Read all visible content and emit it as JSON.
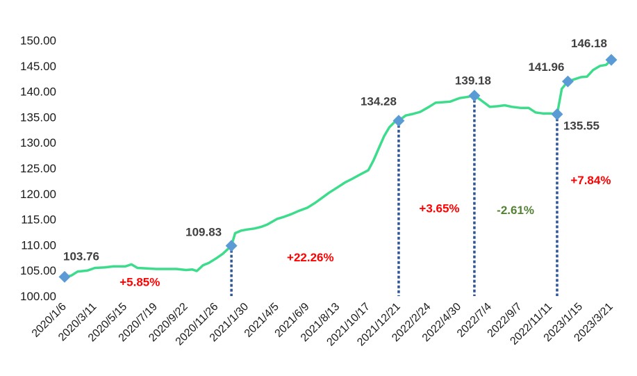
{
  "chart_data": {
    "type": "line",
    "ylim": [
      100,
      150
    ],
    "yticks": [
      "100.00",
      "105.00",
      "110.00",
      "115.00",
      "120.00",
      "125.00",
      "130.00",
      "135.00",
      "140.00",
      "145.00",
      "150.00"
    ],
    "x_tick_labels": [
      "2020/1/6",
      "2020/3/11",
      "2020/5/15",
      "2020/7/19",
      "2020/9/22",
      "2020/11/26",
      "2021/1/30",
      "2021/4/5",
      "2021/6/9",
      "2021/8/13",
      "2021/10/17",
      "2021/12/21",
      "2022/2/24",
      "2022/4/30",
      "2022/7/4",
      "2022/9/7",
      "2022/11/11",
      "2023/1/15",
      "2023/3/21"
    ],
    "series": [
      {
        "color": "#3ddc8c",
        "points": [
          [
            "2020/1/6",
            103.76
          ],
          [
            "2020/1/20",
            104.0
          ],
          [
            "2020/2/3",
            104.8
          ],
          [
            "2020/2/24",
            105.0
          ],
          [
            "2020/3/11",
            105.5
          ],
          [
            "2020/4/1",
            105.6
          ],
          [
            "2020/4/20",
            105.8
          ],
          [
            "2020/5/15",
            105.8
          ],
          [
            "2020/5/28",
            106.2
          ],
          [
            "2020/6/10",
            105.5
          ],
          [
            "2020/7/1",
            105.4
          ],
          [
            "2020/7/19",
            105.3
          ],
          [
            "2020/8/10",
            105.3
          ],
          [
            "2020/9/1",
            105.3
          ],
          [
            "2020/9/22",
            105.1
          ],
          [
            "2020/10/5",
            105.2
          ],
          [
            "2020/10/15",
            104.9
          ],
          [
            "2020/10/28",
            106.0
          ],
          [
            "2020/11/10",
            106.5
          ],
          [
            "2020/11/26",
            107.4
          ],
          [
            "2020/12/10",
            108.3
          ],
          [
            "2020/12/28",
            109.83
          ],
          [
            "2021/1/5",
            112.3
          ],
          [
            "2021/1/18",
            112.8
          ],
          [
            "2021/1/30",
            113.0
          ],
          [
            "2021/2/15",
            113.2
          ],
          [
            "2021/3/1",
            113.5
          ],
          [
            "2021/3/15",
            114.0
          ],
          [
            "2021/4/5",
            115.1
          ],
          [
            "2021/4/20",
            115.5
          ],
          [
            "2021/5/5",
            116.0
          ],
          [
            "2021/5/20",
            116.6
          ],
          [
            "2021/6/9",
            117.3
          ],
          [
            "2021/6/25",
            118.2
          ],
          [
            "2021/7/10",
            119.2
          ],
          [
            "2021/7/25",
            120.2
          ],
          [
            "2021/8/13",
            121.3
          ],
          [
            "2021/8/28",
            122.2
          ],
          [
            "2021/9/12",
            122.9
          ],
          [
            "2021/9/28",
            123.7
          ],
          [
            "2021/10/17",
            124.6
          ],
          [
            "2021/10/28",
            126.5
          ],
          [
            "2021/11/8",
            128.8
          ],
          [
            "2021/11/20",
            131.3
          ],
          [
            "2021/12/1",
            133.0
          ],
          [
            "2021/12/12",
            134.0
          ],
          [
            "2021/12/21",
            134.28
          ],
          [
            "2022/1/5",
            135.3
          ],
          [
            "2022/1/20",
            135.6
          ],
          [
            "2022/2/5",
            136.0
          ],
          [
            "2022/2/24",
            137.0
          ],
          [
            "2022/3/10",
            137.8
          ],
          [
            "2022/3/25",
            137.9
          ],
          [
            "2022/4/10",
            138.0
          ],
          [
            "2022/4/30",
            138.7
          ],
          [
            "2022/5/15",
            138.9
          ],
          [
            "2022/6/1",
            139.18
          ],
          [
            "2022/6/15",
            138.3
          ],
          [
            "2022/7/4",
            137.0
          ],
          [
            "2022/7/20",
            137.1
          ],
          [
            "2022/8/5",
            137.3
          ],
          [
            "2022/8/20",
            137.0
          ],
          [
            "2022/9/7",
            136.8
          ],
          [
            "2022/9/25",
            136.8
          ],
          [
            "2022/10/10",
            135.9
          ],
          [
            "2022/10/25",
            135.7
          ],
          [
            "2022/11/11",
            135.7
          ],
          [
            "2022/11/25",
            135.55
          ],
          [
            "2022/12/5",
            140.5
          ],
          [
            "2022/12/18",
            141.96
          ],
          [
            "2023/1/5",
            142.5
          ],
          [
            "2023/1/15",
            142.8
          ],
          [
            "2023/1/28",
            142.9
          ],
          [
            "2023/2/10",
            144.2
          ],
          [
            "2023/2/25",
            145.0
          ],
          [
            "2023/3/10",
            145.2
          ],
          [
            "2023/3/21",
            146.18
          ]
        ]
      }
    ],
    "markers": [
      {
        "x": "2020/1/6",
        "y": 103.76,
        "label": "103.76",
        "color": "#5b9bd5"
      },
      {
        "x": "2020/12/28",
        "y": 109.83,
        "label": "109.83",
        "color": "#5b9bd5"
      },
      {
        "x": "2021/12/21",
        "y": 134.28,
        "label": "134.28",
        "color": "#5b9bd5"
      },
      {
        "x": "2022/6/1",
        "y": 139.18,
        "label": "139.18",
        "color": "#5b9bd5"
      },
      {
        "x": "2022/11/25",
        "y": 135.55,
        "label": "135.55",
        "color": "#5b9bd5"
      },
      {
        "x": "2022/12/18",
        "y": 141.96,
        "label": "141.96",
        "color": "#5b9bd5"
      },
      {
        "x": "2023/3/21",
        "y": 146.18,
        "label": "146.18",
        "color": "#5b9bd5"
      }
    ],
    "dividers": [
      "2020/12/28",
      "2021/12/21",
      "2022/6/1",
      "2022/11/25"
    ],
    "divider_color": "#2f5597",
    "segment_changes": [
      {
        "text": "+5.85%",
        "color": "#ff0000"
      },
      {
        "text": "+22.26%",
        "color": "#ff0000"
      },
      {
        "text": "+3.65%",
        "color": "#ff0000"
      },
      {
        "text": "-2.61%",
        "color": "#548235"
      },
      {
        "text": "+7.84%",
        "color": "#ff0000"
      }
    ],
    "grid": false,
    "legend": "none"
  }
}
